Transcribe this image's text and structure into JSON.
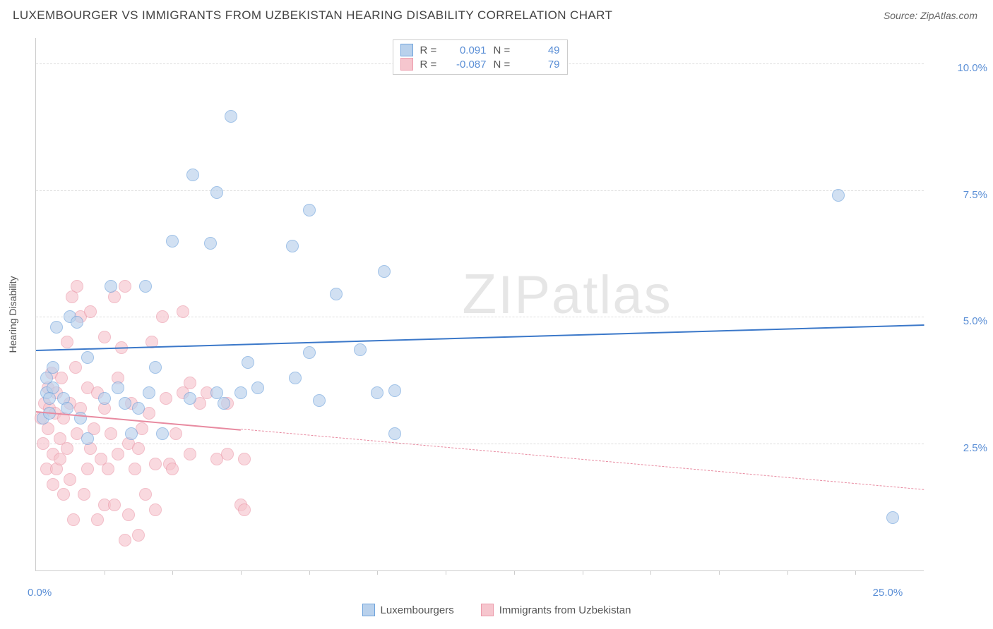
{
  "title": "LUXEMBOURGER VS IMMIGRANTS FROM UZBEKISTAN HEARING DISABILITY CORRELATION CHART",
  "source": "Source: ZipAtlas.com",
  "y_axis_label": "Hearing Disability",
  "watermark": "ZIPatlas",
  "chart": {
    "type": "scatter",
    "background_color": "#ffffff",
    "grid_color": "#dddddd",
    "axis_color": "#cccccc",
    "axis_tick_label_color": "#5b8fd6",
    "xlim": [
      0,
      26
    ],
    "ylim": [
      0,
      10.5
    ],
    "y_ticks": [
      {
        "value": 2.5,
        "label": "2.5%"
      },
      {
        "value": 5.0,
        "label": "5.0%"
      },
      {
        "value": 7.5,
        "label": "7.5%"
      },
      {
        "value": 10.0,
        "label": "10.0%"
      }
    ],
    "x_tick_labels": [
      {
        "value": 0,
        "label": "0.0%"
      },
      {
        "value": 25,
        "label": "25.0%"
      }
    ],
    "x_tick_marks": [
      2,
      4,
      6,
      8,
      10,
      12,
      14,
      16,
      18,
      20,
      22,
      24
    ],
    "marker_radius": 9,
    "series": [
      {
        "id": "luxembourgers",
        "name": "Luxembourgers",
        "color_fill": "#b9d1ec",
        "color_stroke": "#6fa3dc",
        "fill_opacity": 0.65,
        "R": "0.091",
        "N": "49",
        "trend": {
          "x1": 0,
          "y1": 4.35,
          "x2": 26,
          "y2": 4.85,
          "color": "#3b78c9",
          "width": 2,
          "dashed_after_x": null
        },
        "points": [
          [
            0.2,
            3.0
          ],
          [
            0.3,
            3.5
          ],
          [
            0.3,
            3.8
          ],
          [
            0.4,
            3.1
          ],
          [
            0.5,
            3.6
          ],
          [
            0.5,
            4.0
          ],
          [
            0.6,
            4.8
          ],
          [
            0.8,
            3.4
          ],
          [
            1.0,
            5.0
          ],
          [
            0.9,
            3.2
          ],
          [
            1.2,
            4.9
          ],
          [
            1.3,
            3.0
          ],
          [
            1.5,
            4.2
          ],
          [
            1.5,
            2.6
          ],
          [
            2.0,
            3.4
          ],
          [
            2.2,
            5.6
          ],
          [
            2.4,
            3.6
          ],
          [
            2.6,
            3.3
          ],
          [
            2.8,
            2.7
          ],
          [
            3.2,
            5.6
          ],
          [
            3.0,
            3.2
          ],
          [
            3.3,
            3.5
          ],
          [
            3.5,
            4.0
          ],
          [
            3.7,
            2.7
          ],
          [
            4.0,
            6.5
          ],
          [
            4.5,
            3.4
          ],
          [
            4.6,
            7.8
          ],
          [
            5.1,
            6.45
          ],
          [
            5.3,
            3.5
          ],
          [
            5.3,
            7.45
          ],
          [
            5.5,
            3.3
          ],
          [
            5.7,
            8.95
          ],
          [
            6.0,
            3.5
          ],
          [
            6.2,
            4.1
          ],
          [
            6.5,
            3.6
          ],
          [
            7.5,
            6.4
          ],
          [
            7.6,
            3.8
          ],
          [
            8.0,
            7.1
          ],
          [
            8.0,
            4.3
          ],
          [
            8.3,
            3.35
          ],
          [
            8.8,
            5.45
          ],
          [
            9.5,
            4.35
          ],
          [
            10.0,
            3.5
          ],
          [
            10.5,
            2.7
          ],
          [
            10.2,
            5.9
          ],
          [
            10.5,
            3.55
          ],
          [
            23.5,
            7.4
          ],
          [
            25.1,
            1.05
          ],
          [
            0.4,
            3.4
          ]
        ]
      },
      {
        "id": "uzbekistan",
        "name": "Immigrants from Uzbekistan",
        "color_fill": "#f6c6ce",
        "color_stroke": "#ec9bab",
        "fill_opacity": 0.65,
        "R": "-0.087",
        "N": "79",
        "trend": {
          "x1": 0,
          "y1": 3.15,
          "x2": 26,
          "y2": 1.6,
          "color": "#e88aa0",
          "width": 2,
          "dashed_after_x": 6.0
        },
        "points": [
          [
            0.15,
            3.0
          ],
          [
            0.2,
            2.5
          ],
          [
            0.25,
            3.3
          ],
          [
            0.3,
            2.0
          ],
          [
            0.35,
            3.6
          ],
          [
            0.35,
            2.8
          ],
          [
            0.4,
            3.2
          ],
          [
            0.45,
            3.9
          ],
          [
            0.5,
            2.3
          ],
          [
            0.5,
            1.7
          ],
          [
            0.55,
            3.1
          ],
          [
            0.6,
            2.0
          ],
          [
            0.6,
            3.5
          ],
          [
            0.7,
            2.6
          ],
          [
            0.7,
            2.2
          ],
          [
            0.75,
            3.8
          ],
          [
            0.8,
            1.5
          ],
          [
            0.8,
            3.0
          ],
          [
            0.9,
            4.5
          ],
          [
            0.9,
            2.4
          ],
          [
            1.0,
            3.3
          ],
          [
            1.0,
            1.8
          ],
          [
            1.05,
            5.4
          ],
          [
            1.1,
            1.0
          ],
          [
            1.15,
            4.0
          ],
          [
            1.2,
            2.7
          ],
          [
            1.2,
            5.6
          ],
          [
            1.3,
            5.0
          ],
          [
            1.3,
            3.2
          ],
          [
            1.4,
            1.5
          ],
          [
            1.5,
            2.0
          ],
          [
            1.5,
            3.6
          ],
          [
            1.6,
            5.1
          ],
          [
            1.6,
            2.4
          ],
          [
            1.7,
            2.8
          ],
          [
            1.8,
            3.5
          ],
          [
            1.8,
            1.0
          ],
          [
            1.9,
            2.2
          ],
          [
            2.0,
            3.2
          ],
          [
            2.0,
            4.6
          ],
          [
            2.0,
            1.3
          ],
          [
            2.1,
            2.0
          ],
          [
            2.2,
            2.7
          ],
          [
            2.3,
            5.4
          ],
          [
            2.3,
            1.3
          ],
          [
            2.4,
            3.8
          ],
          [
            2.4,
            2.3
          ],
          [
            2.5,
            4.4
          ],
          [
            2.6,
            5.6
          ],
          [
            2.6,
            0.6
          ],
          [
            2.7,
            2.5
          ],
          [
            2.7,
            1.1
          ],
          [
            2.8,
            3.3
          ],
          [
            2.9,
            2.0
          ],
          [
            3.0,
            0.7
          ],
          [
            3.0,
            2.4
          ],
          [
            3.1,
            2.8
          ],
          [
            3.2,
            1.5
          ],
          [
            3.3,
            3.1
          ],
          [
            3.4,
            4.5
          ],
          [
            3.5,
            2.1
          ],
          [
            3.5,
            1.2
          ],
          [
            3.7,
            5.0
          ],
          [
            3.8,
            3.4
          ],
          [
            3.9,
            2.1
          ],
          [
            4.0,
            2.0
          ],
          [
            4.1,
            2.7
          ],
          [
            4.3,
            5.1
          ],
          [
            4.3,
            3.5
          ],
          [
            4.5,
            2.3
          ],
          [
            4.5,
            3.7
          ],
          [
            4.8,
            3.3
          ],
          [
            5.0,
            3.5
          ],
          [
            5.3,
            2.2
          ],
          [
            5.6,
            3.3
          ],
          [
            5.6,
            2.3
          ],
          [
            6.0,
            1.3
          ],
          [
            6.1,
            2.2
          ],
          [
            6.1,
            1.2
          ]
        ]
      }
    ]
  }
}
